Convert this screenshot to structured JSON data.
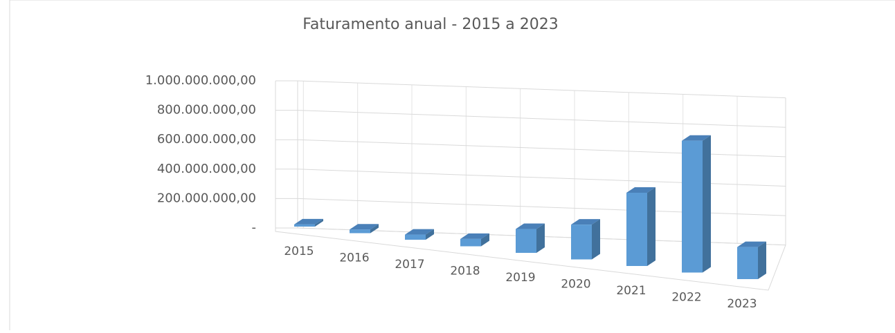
{
  "chart_data": {
    "type": "bar3d",
    "title": "Faturamento anual - 2015 a 2023",
    "categories": [
      "2015",
      "2016",
      "2017",
      "2018",
      "2019",
      "2020",
      "2021",
      "2022",
      "2023"
    ],
    "values": [
      12000000,
      20000000,
      28000000,
      40000000,
      130000000,
      190000000,
      400000000,
      720000000,
      175000000
    ],
    "color": "#5b9bd5",
    "ylim": [
      0,
      1000000000
    ],
    "yticks": [
      {
        "value": 0,
        "label": "-"
      },
      {
        "value": 200000000,
        "label": "200.000.000,00"
      },
      {
        "value": 400000000,
        "label": "400.000.000,00"
      },
      {
        "value": 600000000,
        "label": "600.000.000,00"
      },
      {
        "value": 800000000,
        "label": "800.000.000,00"
      },
      {
        "value": 1000000000,
        "label": "1.000.000.000,00"
      }
    ],
    "grid": true
  }
}
